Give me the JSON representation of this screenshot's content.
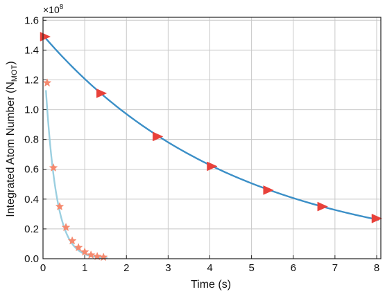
{
  "chart_data": {
    "type": "scatter",
    "title": "",
    "xlabel": "Time (s)",
    "ylabel": "Integrated Atom Number (N",
    "ylabel_sub": "MOT",
    "ylabel_close": ")",
    "y_multiplier": "×10",
    "y_multiplier_exp": "8",
    "xlim": [
      0,
      8.1
    ],
    "ylim": [
      0,
      1.62
    ],
    "xticks": [
      0,
      1,
      2,
      3,
      4,
      5,
      6,
      7,
      8
    ],
    "xtick_labels": [
      "0",
      "1",
      "2",
      "3",
      "4",
      "5",
      "6",
      "7",
      "8"
    ],
    "yticks": [
      0,
      0.2,
      0.4,
      0.6,
      0.8,
      1.0,
      1.2,
      1.4,
      1.6
    ],
    "ytick_labels": [
      "0.0",
      "0.2",
      "0.4",
      "0.6",
      "0.8",
      "1.0",
      "1.2",
      "1.4",
      "1.6"
    ],
    "grid": true,
    "series": [
      {
        "marker": "triangle",
        "color": "#e8413a",
        "fit_color": "#3b8fc7",
        "fit": {
          "A": 1.5,
          "tau": 4.6,
          "x0": 0.0,
          "x1": 8.05
        },
        "x": [
          0.05,
          1.4,
          2.75,
          4.05,
          5.4,
          6.7,
          8.0
        ],
        "y": [
          1.49,
          1.11,
          0.82,
          0.62,
          0.46,
          0.35,
          0.27
        ]
      },
      {
        "marker": "star",
        "color": "#f5896e",
        "fit_color": "#9bcfe0",
        "fit": {
          "A": 1.48,
          "tau": 0.26,
          "x0": 0.07,
          "x1": 1.55
        },
        "x": [
          0.1,
          0.25,
          0.4,
          0.55,
          0.7,
          0.85,
          1.0,
          1.15,
          1.3,
          1.45
        ],
        "y": [
          1.18,
          0.61,
          0.35,
          0.21,
          0.12,
          0.075,
          0.045,
          0.025,
          0.015,
          0.01
        ]
      }
    ]
  }
}
